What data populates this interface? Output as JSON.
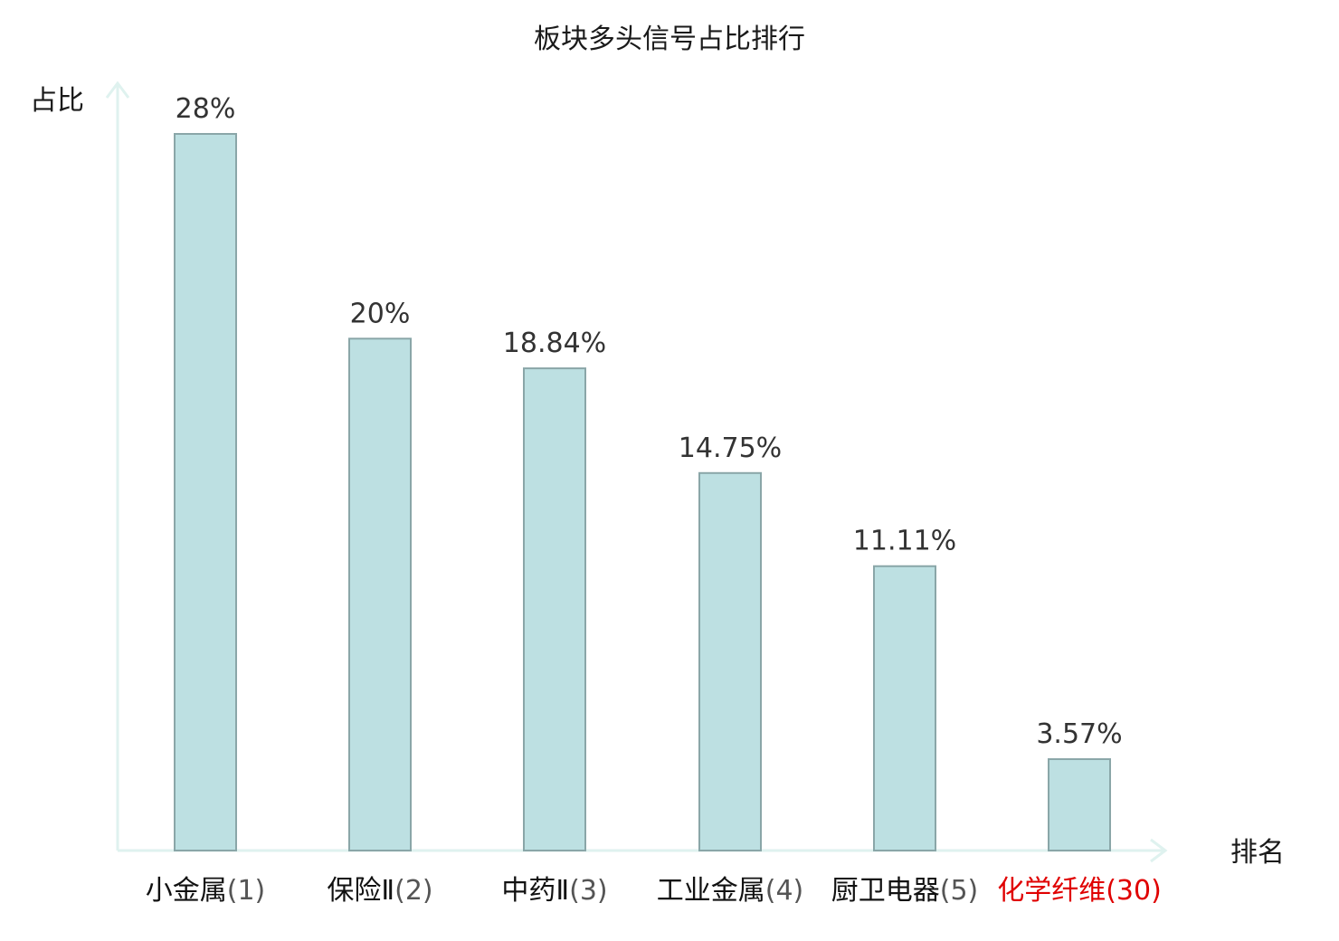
{
  "chart_data": {
    "type": "bar",
    "title": "板块多头信号占比排行",
    "ylabel": "占比",
    "xlabel": "排名",
    "ylim": [
      0,
      30
    ],
    "categories": [
      {
        "name": "小金属",
        "rank": "(1)",
        "highlight": false
      },
      {
        "name": "保险Ⅱ",
        "rank": "(2)",
        "highlight": false
      },
      {
        "name": "中药Ⅱ",
        "rank": "(3)",
        "highlight": false
      },
      {
        "name": "工业金属",
        "rank": "(4)",
        "highlight": false
      },
      {
        "name": "厨卫电器",
        "rank": "(5)",
        "highlight": false
      },
      {
        "name": "化学纤维",
        "rank": "(30)",
        "highlight": true
      }
    ],
    "values": [
      28,
      20,
      18.84,
      14.75,
      11.11,
      3.57
    ],
    "value_labels": [
      "28%",
      "20%",
      "18.84%",
      "14.75%",
      "11.11%",
      "3.57%"
    ],
    "grid": false,
    "colors": {
      "bar_fill": "#bde0e2",
      "bar_stroke": "#8aa6a8",
      "axis": "#dff2ef",
      "highlight_label": "#e00000"
    }
  }
}
